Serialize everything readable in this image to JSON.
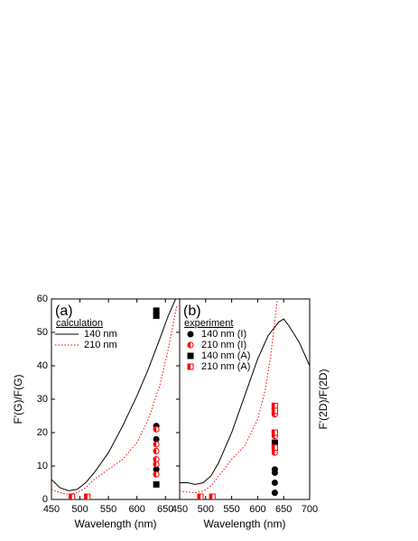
{
  "chart_data": [
    {
      "type": "line",
      "label": "(a)",
      "xlabel": "Wavelength (nm)",
      "ylabel": "F'(G)/F(G)",
      "ylabel_side": "left",
      "xlim": [
        450,
        675
      ],
      "xticks": [
        450,
        500,
        550,
        600,
        650
      ],
      "ylim": [
        0,
        60
      ],
      "yticks": [
        0,
        10,
        20,
        30,
        40,
        50,
        60
      ],
      "legend_title": "calculation",
      "series": [
        {
          "name": "140 nm",
          "color": "#000000",
          "dash": false,
          "x": [
            450,
            465,
            480,
            495,
            510,
            525,
            550,
            575,
            600,
            620,
            640,
            655,
            668
          ],
          "values": [
            6,
            3.5,
            2.6,
            3,
            5,
            8,
            14,
            22,
            31,
            39,
            48,
            55,
            60
          ]
        },
        {
          "name": "210 nm",
          "color": "#ff0000",
          "dash": true,
          "x": [
            450,
            465,
            480,
            495,
            510,
            525,
            550,
            575,
            600,
            620,
            640,
            655,
            670
          ],
          "values": [
            3,
            2,
            1.5,
            2,
            3.5,
            6,
            9,
            12,
            17,
            24,
            34,
            45,
            58
          ]
        },
        {
          "color": "#000000",
          "marker": "circle",
          "x": [
            634,
            634,
            634
          ],
          "values": [
            22,
            18,
            9
          ]
        },
        {
          "color": "#ff0000",
          "marker": "half-circle",
          "x": [
            634,
            634,
            634,
            634,
            634,
            634
          ],
          "values": [
            21,
            16.5,
            14.5,
            12,
            10.5,
            7.5
          ]
        },
        {
          "color": "#000000",
          "marker": "square",
          "x": [
            634,
            634,
            634
          ],
          "values": [
            56.5,
            55,
            4.5
          ]
        },
        {
          "color": "#ff0000",
          "marker": "half-square",
          "x": [
            486,
            513
          ],
          "values": [
            0.8,
            0.8
          ]
        }
      ]
    },
    {
      "type": "line",
      "label": "(b)",
      "xlabel": "Wavelength (nm)",
      "ylabel": "F'(2D)/F(2D)",
      "ylabel_side": "right",
      "xlim": [
        450,
        700
      ],
      "xticks": [
        450,
        500,
        550,
        600,
        650,
        700
      ],
      "ylim": [
        0,
        60
      ],
      "legend_title": "experiment",
      "series": [
        {
          "color": "#000000",
          "dash": false,
          "x": [
            450,
            465,
            480,
            495,
            510,
            525,
            550,
            575,
            600,
            620,
            640,
            650,
            660,
            680,
            700
          ],
          "values": [
            5,
            5,
            4.5,
            5,
            7,
            11,
            20,
            31,
            42,
            49,
            53,
            54,
            52,
            47,
            40
          ]
        },
        {
          "color": "#ff0000",
          "dash": true,
          "x": [
            450,
            465,
            480,
            495,
            510,
            525,
            550,
            575,
            600,
            615,
            625,
            632,
            638
          ],
          "values": [
            2.5,
            2.2,
            2,
            2.5,
            4,
            7,
            12,
            16,
            24,
            33,
            43,
            52,
            60
          ]
        },
        {
          "name": "140 nm (I)",
          "color": "#000000",
          "marker": "circle",
          "x": [
            633,
            633,
            633,
            633
          ],
          "values": [
            9,
            8,
            5,
            2
          ]
        },
        {
          "name": "210 nm (I)",
          "color": "#ff0000",
          "marker": "half-circle",
          "x": [
            633,
            633,
            633,
            633
          ],
          "values": [
            25.5,
            19,
            15,
            14
          ]
        },
        {
          "name": "140 nm (A)",
          "color": "#000000",
          "marker": "square",
          "x": [
            633
          ],
          "values": [
            17
          ]
        },
        {
          "name": "210 nm (A)",
          "color": "#ff0000",
          "marker": "half-square",
          "x": [
            633,
            633,
            633,
            633,
            490,
            513
          ],
          "values": [
            28,
            26.5,
            20,
            15.5,
            0.8,
            0.8
          ]
        }
      ]
    }
  ]
}
